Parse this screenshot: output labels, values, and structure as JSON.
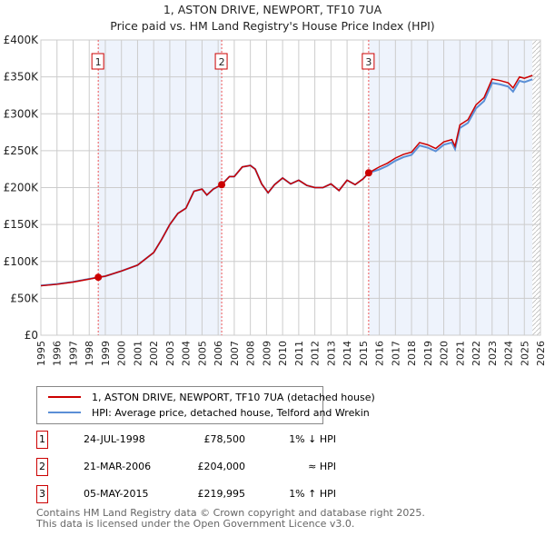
{
  "chart_data": {
    "type": "line",
    "title": "1, ASTON DRIVE, NEWPORT, TF10 7UA",
    "subtitle": "Price paid vs. HM Land Registry's House Price Index (HPI)",
    "xlim": [
      1995,
      2026
    ],
    "ylim": [
      0,
      400000
    ],
    "x_ticks": [
      "1995",
      "1996",
      "1997",
      "1998",
      "1999",
      "2000",
      "2001",
      "2002",
      "2003",
      "2004",
      "2005",
      "2006",
      "2007",
      "2008",
      "2009",
      "2010",
      "2011",
      "2012",
      "2013",
      "2014",
      "2015",
      "2016",
      "2017",
      "2018",
      "2019",
      "2020",
      "2021",
      "2022",
      "2023",
      "2024",
      "2025",
      "2026"
    ],
    "y_ticks": [
      {
        "v": 0,
        "label": "£0"
      },
      {
        "v": 50000,
        "label": "£50K"
      },
      {
        "v": 100000,
        "label": "£100K"
      },
      {
        "v": 150000,
        "label": "£150K"
      },
      {
        "v": 200000,
        "label": "£200K"
      },
      {
        "v": 250000,
        "label": "£250K"
      },
      {
        "v": 300000,
        "label": "£300K"
      },
      {
        "v": 350000,
        "label": "£350K"
      },
      {
        "v": 400000,
        "label": "£400K"
      }
    ],
    "grid": true,
    "series": [
      {
        "name": "1, ASTON DRIVE, NEWPORT, TF10 7UA (detached house)",
        "color": "#cc0000",
        "x": [
          1995,
          1996,
          1997,
          1998,
          1998.56,
          1999,
          2000,
          2001,
          2002,
          2002.5,
          2003,
          2003.5,
          2004,
          2004.5,
          2005,
          2005.3,
          2005.7,
          2006.22,
          2006.7,
          2007,
          2007.5,
          2008,
          2008.3,
          2008.7,
          2009.1,
          2009.5,
          2010,
          2010.5,
          2011,
          2011.5,
          2012,
          2012.5,
          2013,
          2013.5,
          2014,
          2014.5,
          2015,
          2015.34,
          2016,
          2016.5,
          2017,
          2017.5,
          2018,
          2018.5,
          2019,
          2019.5,
          2020,
          2020.5,
          2020.7,
          2021,
          2021.5,
          2022,
          2022.5,
          2023,
          2023.5,
          2024,
          2024.3,
          2024.7,
          2025,
          2025.5
        ],
        "y": [
          67000,
          69000,
          72000,
          76000,
          78500,
          80000,
          87000,
          95000,
          112000,
          130000,
          150000,
          165000,
          172000,
          195000,
          198000,
          190000,
          198000,
          204000,
          215000,
          215000,
          228000,
          230000,
          225000,
          205000,
          193000,
          204000,
          213000,
          205000,
          210000,
          203000,
          200000,
          200000,
          205000,
          196000,
          210000,
          204000,
          212000,
          219995,
          228000,
          233000,
          240000,
          245000,
          248000,
          261000,
          258000,
          253000,
          262000,
          265000,
          256000,
          285000,
          292000,
          312000,
          322000,
          347000,
          345000,
          342000,
          335000,
          350000,
          348000,
          352000
        ]
      },
      {
        "name": "HPI: Average price, detached house, Telford and Wrekin",
        "color": "#5b8fd6"
      }
    ],
    "sales": [
      {
        "n": "1",
        "date": "24-JUL-1998",
        "x": 1998.56,
        "price": "£78,500",
        "price_v": 78500,
        "hpi": "1% ↓ HPI"
      },
      {
        "n": "2",
        "date": "21-MAR-2006",
        "x": 2006.22,
        "price": "£204,000",
        "price_v": 204000,
        "hpi": "≈ HPI"
      },
      {
        "n": "3",
        "date": "05-MAY-2015",
        "x": 2015.34,
        "price": "£219,995",
        "price_v": 219995,
        "hpi": "1% ↑ HPI"
      }
    ],
    "shade_color": "#eef3fc"
  },
  "footer": {
    "line1": "Contains HM Land Registry data © Crown copyright and database right 2025.",
    "line2": "This data is licensed under the Open Government Licence v3.0."
  }
}
